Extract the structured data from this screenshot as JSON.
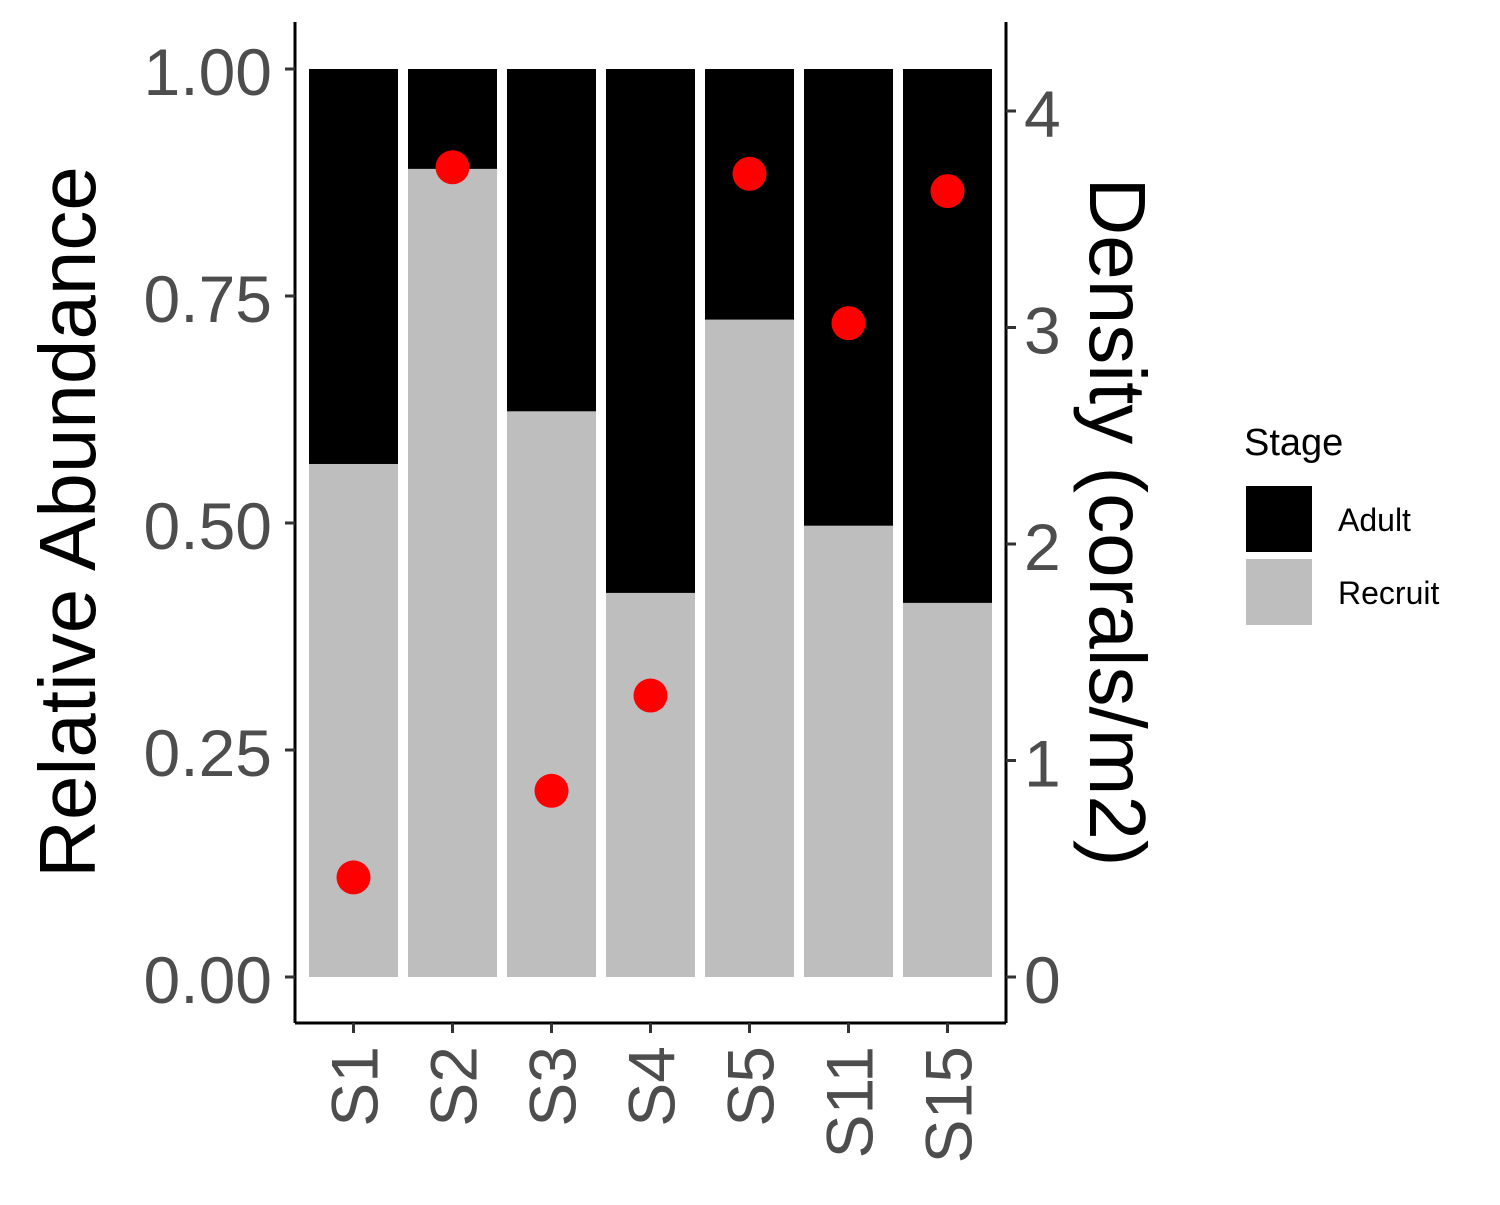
{
  "chart_data": {
    "type": "bar",
    "stacked": true,
    "categories": [
      "S1",
      "S2",
      "S3",
      "S4",
      "S5",
      "S11",
      "S15"
    ],
    "series": [
      {
        "name": "Recruit",
        "values": [
          0.565,
          0.89,
          0.623,
          0.423,
          0.724,
          0.497,
          0.412
        ],
        "color": "#bebebe"
      },
      {
        "name": "Adult",
        "values": [
          0.435,
          0.11,
          0.377,
          0.577,
          0.276,
          0.503,
          0.588
        ],
        "color": "#000000"
      }
    ],
    "density": {
      "values": [
        0.46,
        3.74,
        0.86,
        1.3,
        3.71,
        3.02,
        3.63
      ],
      "color": "#ff0000"
    },
    "xlabel": "",
    "ylabel": "Relative Abundance",
    "y2label": "Density (corals/m2)",
    "ylim": [
      0,
      1
    ],
    "y2lim": [
      0,
      4.2
    ],
    "yticks": [
      "0.00",
      "0.25",
      "0.50",
      "0.75",
      "1.00"
    ],
    "y2ticks": [
      "0",
      "1",
      "2",
      "3",
      "4"
    ],
    "grid": false,
    "legend": {
      "title": "Stage",
      "position": "right",
      "entries": [
        {
          "label": "Adult",
          "color": "#000000"
        },
        {
          "label": "Recruit",
          "color": "#bebebe"
        }
      ]
    }
  }
}
